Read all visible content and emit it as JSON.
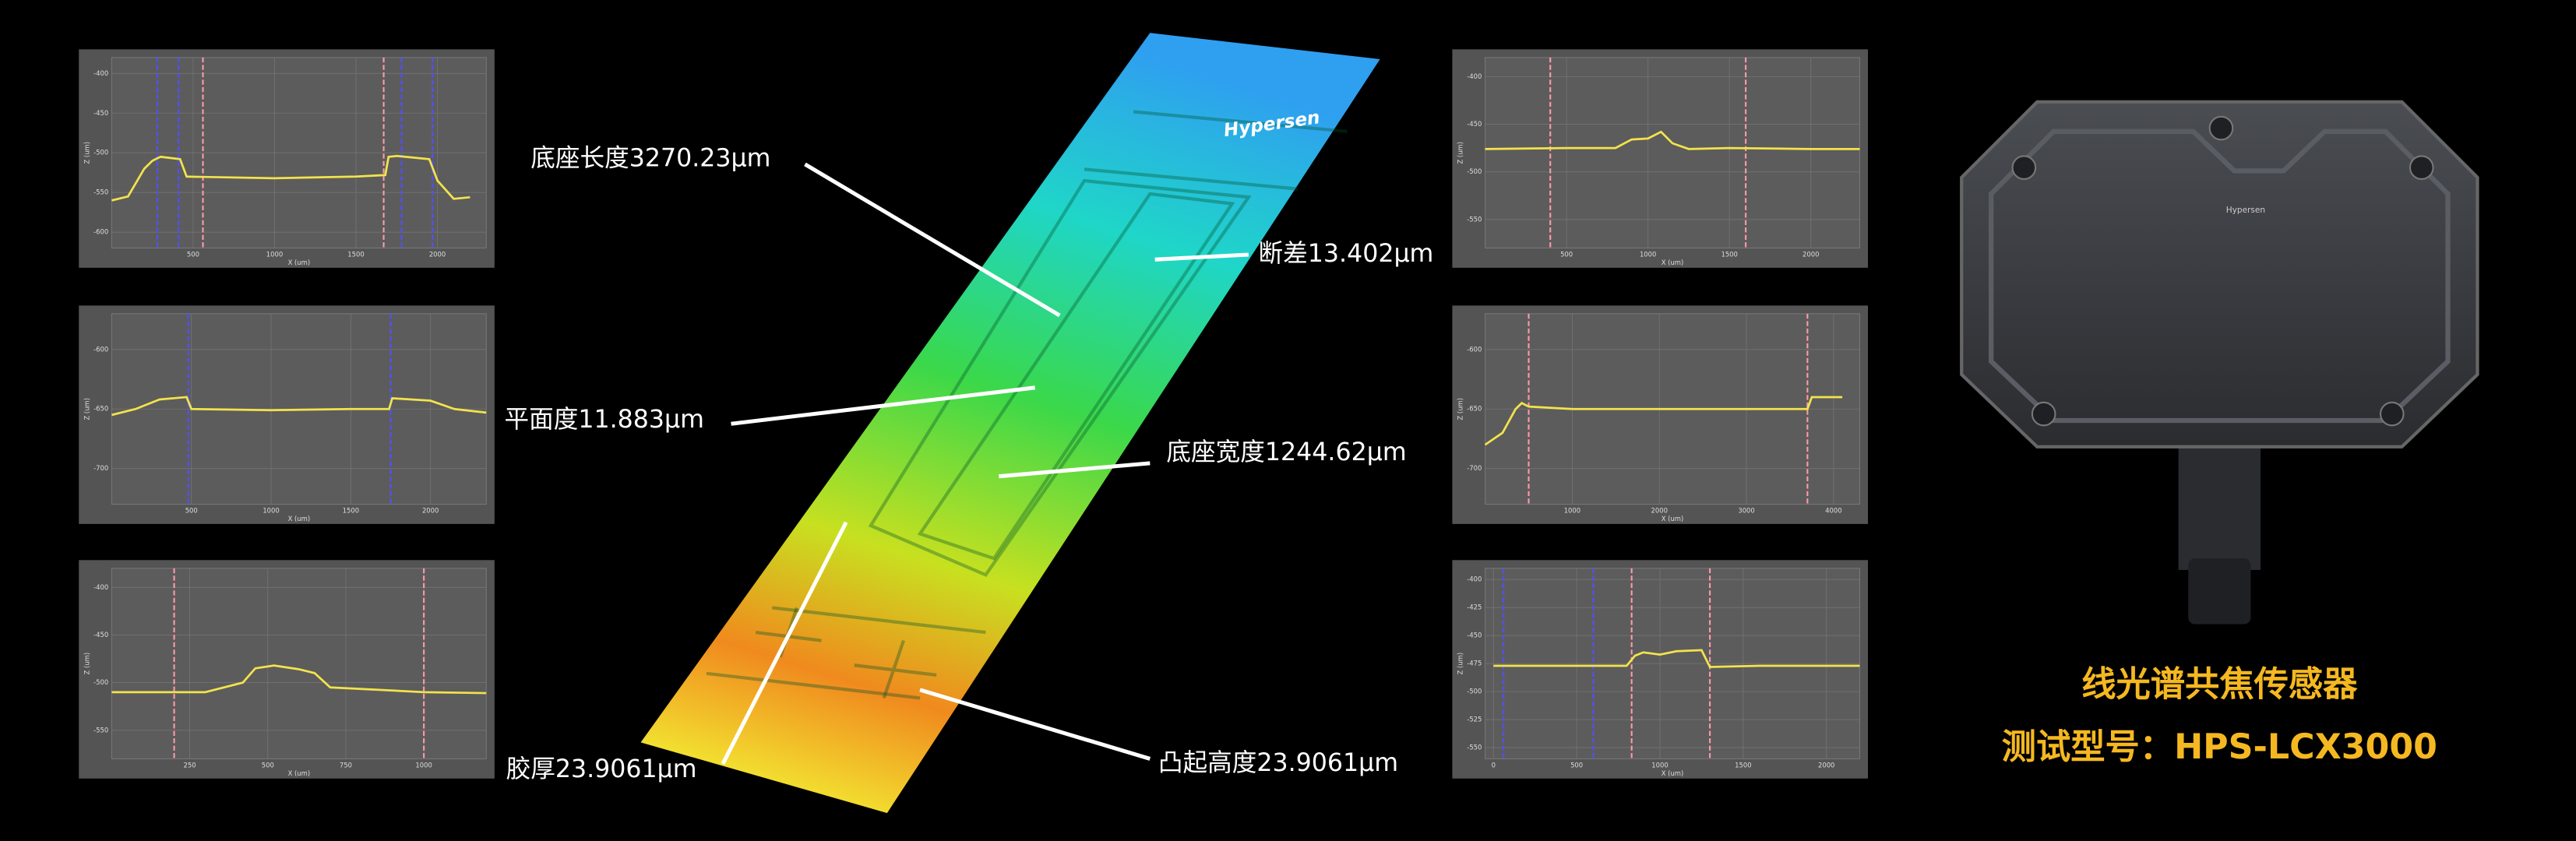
{
  "profiles": [
    {
      "type": "line",
      "xlabel": "X (um)",
      "ylabel": "Z (um)",
      "color": "#f2e34c",
      "xlim": [
        0,
        2300
      ],
      "ylim": [
        -620,
        -380
      ],
      "xticks": [
        500,
        1000,
        1500,
        2000
      ],
      "yticks": [
        -400,
        -450,
        -500,
        -550,
        -600
      ],
      "x": [
        0,
        100,
        200,
        250,
        300,
        420,
        460,
        1000,
        1500,
        1680,
        1700,
        1750,
        1950,
        2000,
        2100,
        2200
      ],
      "values": [
        -560,
        -555,
        -520,
        -510,
        -505,
        -508,
        -530,
        -532,
        -530,
        -528,
        -505,
        -504,
        -508,
        -535,
        -558,
        -556
      ],
      "markers": [
        {
          "x": 280,
          "color": "#5050ff"
        },
        {
          "x": 410,
          "color": "#5050ff"
        },
        {
          "x": 560,
          "color": "#ff9aa8"
        },
        {
          "x": 1670,
          "color": "#ff9aa8"
        },
        {
          "x": 1780,
          "color": "#5050ff"
        },
        {
          "x": 1970,
          "color": "#5050ff"
        }
      ]
    },
    {
      "type": "line",
      "xlabel": "X (um)",
      "ylabel": "Z (um)",
      "color": "#f2e34c",
      "xlim": [
        0,
        2350
      ],
      "ylim": [
        -730,
        -570
      ],
      "xticks": [
        500,
        1000,
        1500,
        2000
      ],
      "yticks": [
        -600,
        -650,
        -700
      ],
      "x": [
        0,
        150,
        300,
        470,
        500,
        1000,
        1500,
        1740,
        1760,
        2000,
        2150,
        2350
      ],
      "values": [
        -655,
        -650,
        -642,
        -640,
        -650,
        -651,
        -650,
        -650,
        -641,
        -643,
        -650,
        -653
      ],
      "markers": [
        {
          "x": 480,
          "color": "#5050ff"
        },
        {
          "x": 1750,
          "color": "#5050ff"
        }
      ]
    },
    {
      "type": "line",
      "xlabel": "X (um)",
      "ylabel": "Z (um)",
      "color": "#f2e34c",
      "xlim": [
        0,
        1200
      ],
      "ylim": [
        -580,
        -380
      ],
      "xticks": [
        250,
        500,
        750,
        1000
      ],
      "yticks": [
        -400,
        -450,
        -500,
        -550
      ],
      "x": [
        0,
        300,
        420,
        460,
        520,
        600,
        650,
        700,
        1000,
        1200
      ],
      "values": [
        -510,
        -510,
        -500,
        -485,
        -482,
        -486,
        -490,
        -505,
        -510,
        -511
      ],
      "markers": [
        {
          "x": 200,
          "color": "#ff9aa8"
        },
        {
          "x": 1000,
          "color": "#ff9aa8"
        }
      ]
    },
    {
      "type": "line",
      "xlabel": "X (um)",
      "ylabel": "Z (um)",
      "color": "#f2e34c",
      "xlim": [
        0,
        2300
      ],
      "ylim": [
        -580,
        -380
      ],
      "xticks": [
        500,
        1000,
        1500,
        2000
      ],
      "yticks": [
        -400,
        -450,
        -500,
        -550
      ],
      "x": [
        0,
        500,
        800,
        900,
        1000,
        1080,
        1150,
        1250,
        1500,
        2000,
        2300
      ],
      "values": [
        -476,
        -475,
        -475,
        -466,
        -465,
        -458,
        -470,
        -476,
        -475,
        -476,
        -476
      ],
      "markers": [
        {
          "x": 400,
          "color": "#ff9aa8"
        },
        {
          "x": 1600,
          "color": "#ff9aa8"
        }
      ]
    },
    {
      "type": "line",
      "xlabel": "X (um)",
      "ylabel": "Z (um)",
      "color": "#f2e34c",
      "xlim": [
        0,
        4300
      ],
      "ylim": [
        -730,
        -570
      ],
      "xticks": [
        1000,
        2000,
        3000,
        4000
      ],
      "yticks": [
        -600,
        -650,
        -700
      ],
      "x": [
        0,
        200,
        350,
        420,
        500,
        1000,
        2000,
        3000,
        3700,
        3750,
        4100
      ],
      "values": [
        -680,
        -670,
        -650,
        -645,
        -648,
        -650,
        -650,
        -650,
        -650,
        -640,
        -640
      ],
      "markers": [
        {
          "x": 500,
          "color": "#ff9aa8"
        },
        {
          "x": 3700,
          "color": "#ff9aa8"
        }
      ]
    },
    {
      "type": "line",
      "xlabel": "X (um)",
      "ylabel": "Z (um)",
      "color": "#f2e34c",
      "xlim": [
        -50,
        2200
      ],
      "ylim": [
        -560,
        -390
      ],
      "xticks": [
        0,
        500,
        1000,
        1500,
        2000
      ],
      "yticks": [
        -400,
        -425,
        -450,
        -475,
        -500,
        -525,
        -550
      ],
      "x": [
        0,
        500,
        800,
        850,
        900,
        1000,
        1100,
        1250,
        1300,
        1600,
        2200
      ],
      "values": [
        -477,
        -477,
        -477,
        -468,
        -465,
        -467,
        -464,
        -463,
        -478,
        -477,
        -477
      ],
      "markers": [
        {
          "x": 60,
          "color": "#5050ff"
        },
        {
          "x": 600,
          "color": "#5050ff"
        },
        {
          "x": 830,
          "color": "#ff9aa8"
        },
        {
          "x": 1300,
          "color": "#ff9aa8"
        }
      ]
    }
  ],
  "scan_logo": "Hypersen",
  "callouts": [
    "底座长度3270.23μm",
    "断差13.402μm",
    "平面度11.883μm",
    "底座宽度1244.62μm",
    "胶厚23.9061μm",
    "凸起高度23.9061μm"
  ],
  "product": {
    "title": "线光谱共焦传感器",
    "model": "测试型号：HPS-LCX3000",
    "logo": "Hypersen"
  }
}
